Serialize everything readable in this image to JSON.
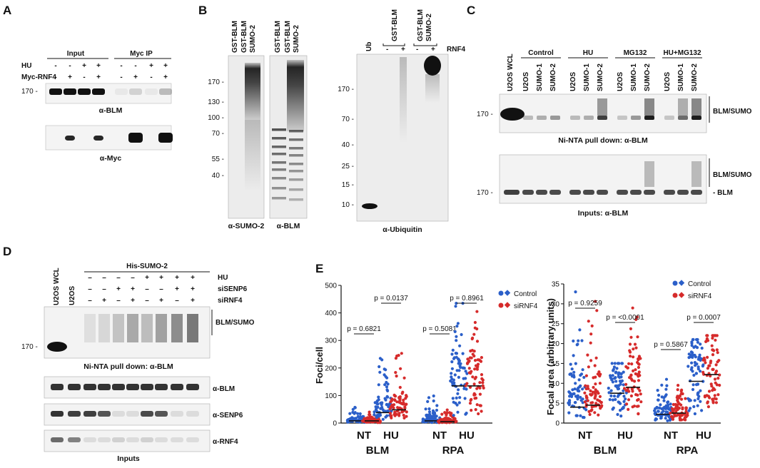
{
  "panels": {
    "A": {
      "letter": "A",
      "conds": [
        "HU",
        "Myc-RNF4"
      ],
      "groups": [
        "Input",
        "Myc IP"
      ],
      "hu_signs": [
        "-",
        "-",
        "+",
        "+",
        "-",
        "-",
        "+",
        "+"
      ],
      "rnf4_signs": [
        "-",
        "+",
        "-",
        "+",
        "-",
        "+",
        "-",
        "+"
      ],
      "mw": "170 -",
      "blot1": "α-BLM",
      "blot2": "α-Myc"
    },
    "B": {
      "letter": "B",
      "left_cols": [
        "GST-BLM",
        "GST-BLM",
        "SUMO-2",
        "GST-BLM",
        "GST-BLM",
        "SUMO-2"
      ],
      "mw_left": [
        "170 -",
        "130 -",
        "100 -",
        "70 -",
        "55 -",
        "40 -"
      ],
      "blot1": "α-SUMO-2",
      "blot2": "α-BLM",
      "right_cols": [
        "Ub",
        "GST-BLM",
        "GST-BLM",
        "SUMO-2"
      ],
      "right_signs": [
        "-",
        "+",
        "-",
        "+"
      ],
      "rnf4": "RNF4",
      "mw_right": [
        "170 -",
        "70 -",
        "40 -",
        "25 -",
        "15 -",
        "10 -"
      ],
      "blot3": "α-Ubiquitin"
    },
    "C": {
      "letter": "C",
      "wcl": "U2OS WCL",
      "groups": [
        "Control",
        "HU",
        "MG132",
        "HU+MG132"
      ],
      "lanes": [
        "U2OS",
        "SUMO-1",
        "SUMO-2",
        "U2OS",
        "SUMO-1",
        "SUMO-2",
        "U2OS",
        "SUMO-1",
        "SUMO-2",
        "U2OS",
        "SUMO-1",
        "SUMO-2"
      ],
      "mw": "170 -",
      "bracket": "BLM/SUMO",
      "cap1": "Ni-NTA pull down: α-BLM",
      "blm": "- BLM",
      "cap2": "Inputs: α-BLM"
    },
    "D": {
      "letter": "D",
      "wcl": "U2OS WCL",
      "u2os": "U2OS",
      "his": "His-SUMO-2",
      "conds": [
        "HU",
        "siSENP6",
        "siRNF4"
      ],
      "hu_signs": [
        "–",
        "–",
        "–",
        "–",
        "+",
        "+",
        "+",
        "+"
      ],
      "senp6_signs": [
        "–",
        "–",
        "+",
        "+",
        "–",
        "–",
        "+",
        "+"
      ],
      "rnf4_signs": [
        "–",
        "+",
        "–",
        "+",
        "–",
        "+",
        "–",
        "+"
      ],
      "mw": "170 -",
      "bracket": "BLM/SUMO",
      "cap1": "Ni-NTA pull down: α-BLM",
      "blots": [
        "α-BLM",
        "α-SENP6",
        "α-RNF4"
      ],
      "cap2": "Inputs"
    },
    "E": {
      "letter": "E",
      "colors": {
        "control": "#2b5fc9",
        "sirnf4": "#d62b2b"
      },
      "legend": [
        "Control",
        "siRNF4"
      ],
      "left": {
        "ylabel": "Foci/cell",
        "yticks": [
          "0",
          "100",
          "200",
          "300",
          "400",
          "500"
        ],
        "pvals": [
          "p = 0.6821",
          "p = 0.0137",
          "p = 0.5081",
          "p = 0.8961"
        ],
        "xt": [
          "NT",
          "HU",
          "NT",
          "HU"
        ],
        "groups": [
          "BLM",
          "RPA"
        ]
      },
      "right": {
        "ylabel": "Focal area (arbitrary units)",
        "yticks": [
          "0",
          "5",
          "10",
          "15",
          "20",
          "25",
          "30",
          "35"
        ],
        "pvals": [
          "p = 0.9259",
          "p = <0.0001",
          "p = 0.5867",
          "p = 0.0007"
        ],
        "xt": [
          "NT",
          "HU",
          "NT",
          "HU"
        ],
        "groups": [
          "BLM",
          "RPA"
        ]
      }
    }
  },
  "chart_data": [
    {
      "type": "scatter",
      "ylabel": "Foci/cell",
      "ylim": [
        0,
        500
      ],
      "categories": [
        "BLM NT",
        "BLM HU",
        "RPA NT",
        "RPA HU"
      ],
      "series": [
        {
          "name": "Control",
          "medians": [
            8,
            38,
            8,
            135
          ],
          "max": [
            60,
            235,
            100,
            435
          ]
        },
        {
          "name": "siRNF4",
          "medians": [
            8,
            48,
            5,
            135
          ],
          "max": [
            40,
            265,
            50,
            405
          ]
        }
      ],
      "p_values": [
        "p = 0.6821",
        "p = 0.0137",
        "p = 0.5081",
        "p = 0.8961"
      ]
    },
    {
      "type": "scatter",
      "ylabel": "Focal area (arbitrary units)",
      "ylim": [
        0,
        35
      ],
      "categories": [
        "BLM NT",
        "BLM HU",
        "RPA NT",
        "RPA HU"
      ],
      "series": [
        {
          "name": "Control",
          "medians": [
            4,
            7.5,
            2.2,
            10.5
          ],
          "max": [
            33,
            15,
            11,
            21
          ]
        },
        {
          "name": "siRNF4",
          "medians": [
            4.5,
            9,
            2.5,
            12.2
          ],
          "max": [
            33,
            29,
            9.5,
            22
          ]
        }
      ],
      "p_values": [
        "p = 0.9259",
        "p = <0.0001",
        "p = 0.5867",
        "p = 0.0007"
      ]
    }
  ]
}
